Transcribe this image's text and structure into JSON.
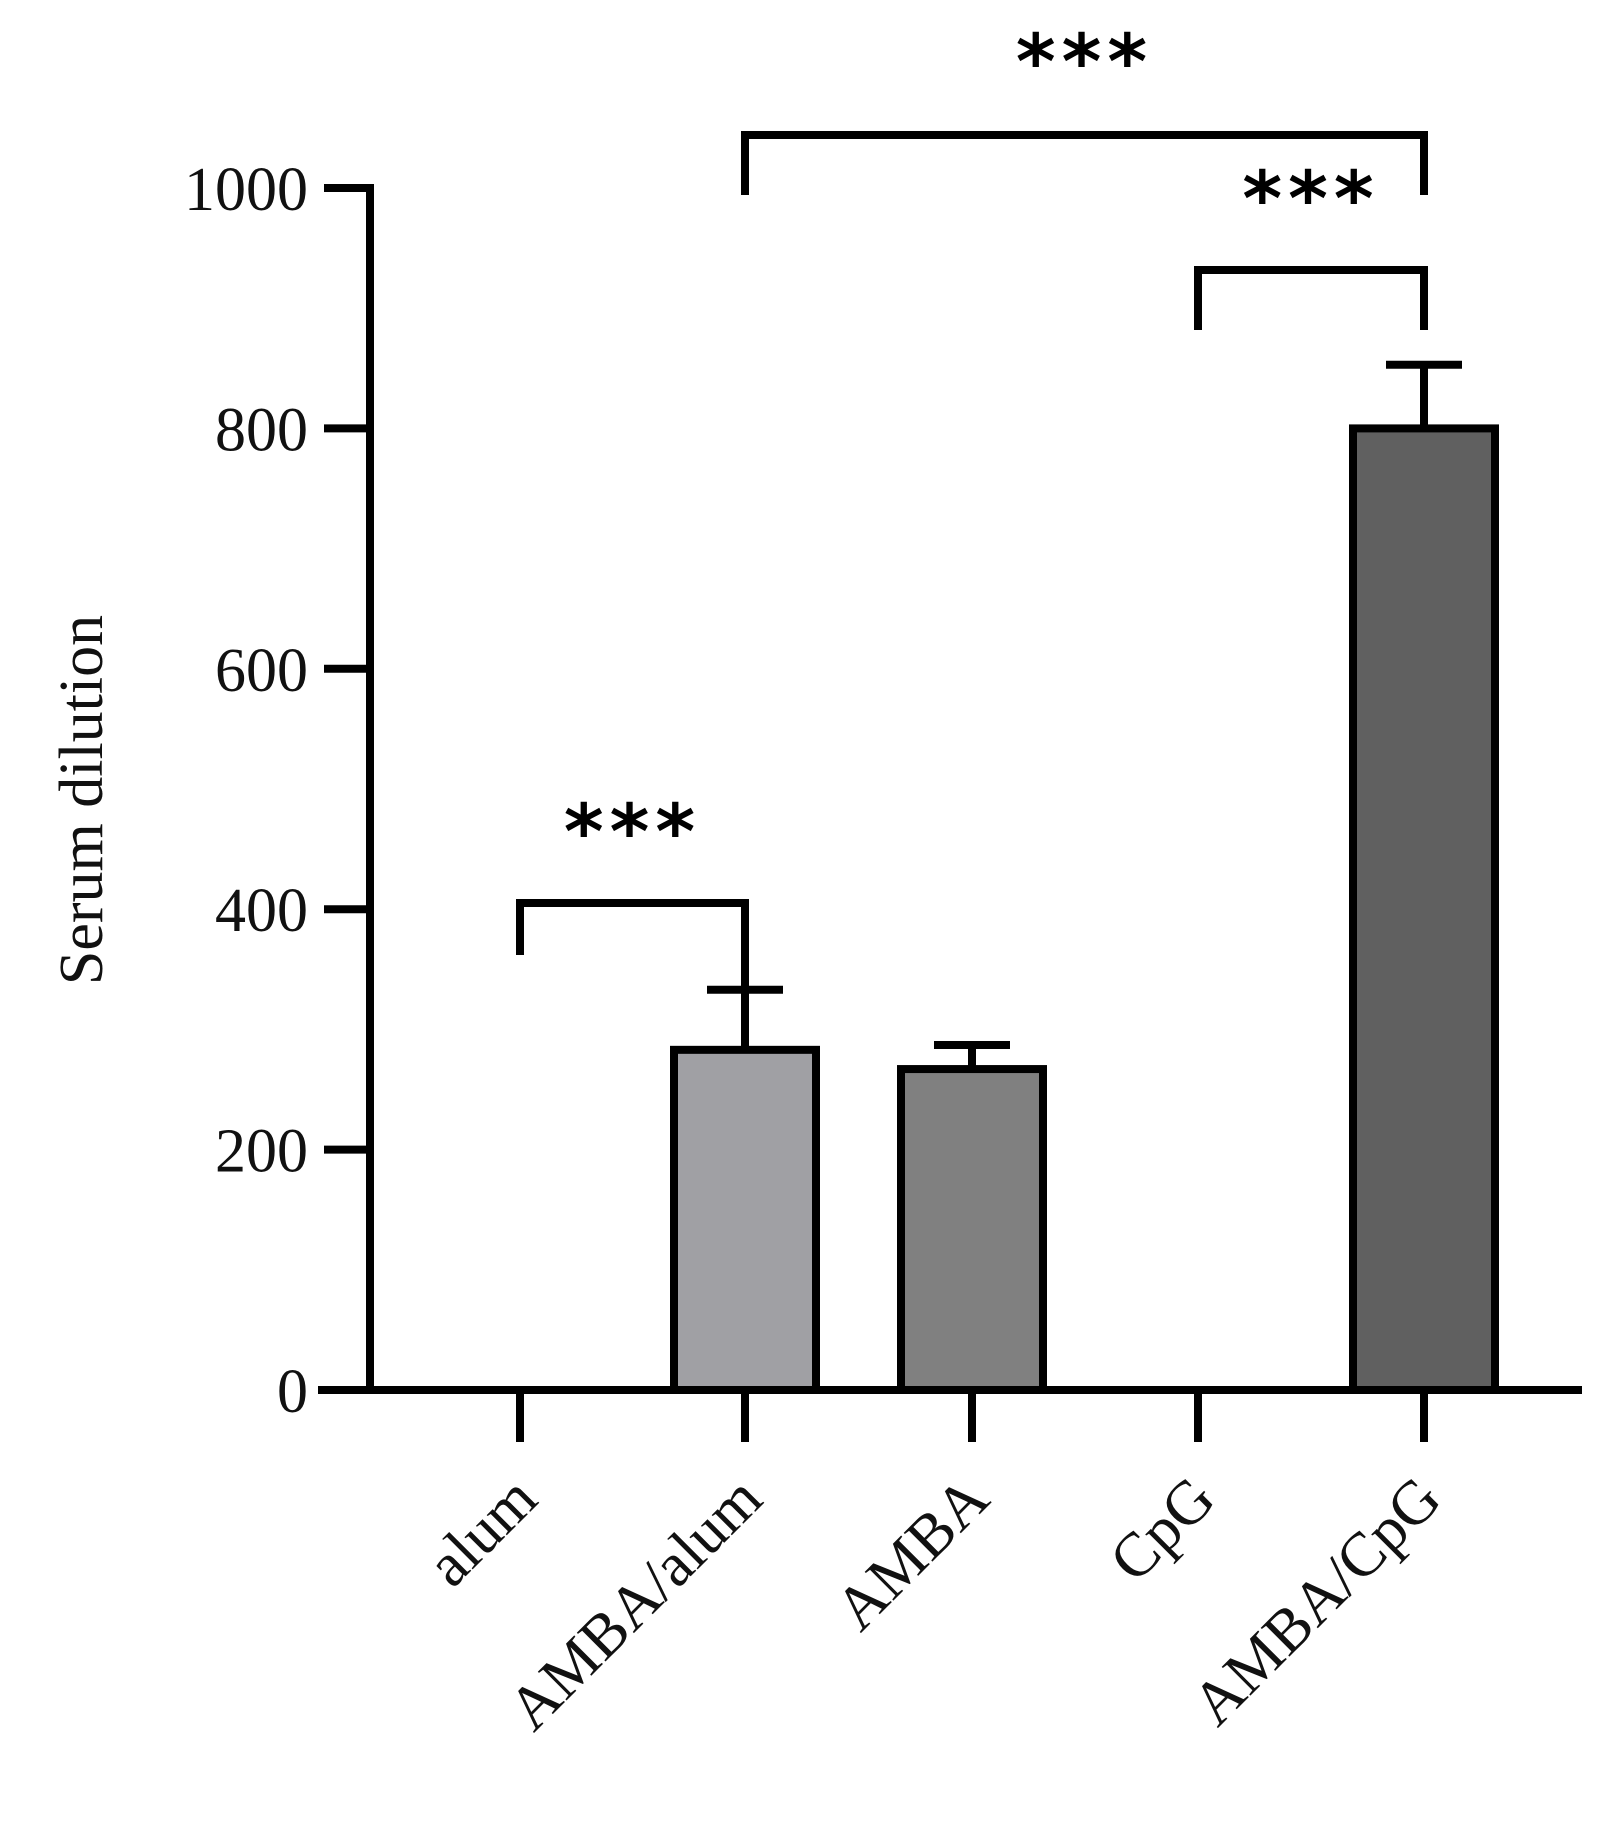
{
  "chart_data": {
    "type": "bar",
    "title": "",
    "xlabel": "",
    "ylabel": "Serum dilution",
    "ylim": [
      0,
      1000
    ],
    "yticks": [
      0,
      200,
      400,
      600,
      800,
      1000
    ],
    "grid": false,
    "legend": "none",
    "categories": [
      "alum",
      "AMBA/alum",
      "AMBA",
      "CpG",
      "AMBA/CpG"
    ],
    "values": [
      0,
      283,
      267,
      0,
      800
    ],
    "errors": [
      0,
      50,
      20,
      0,
      53
    ],
    "colors": [
      "#a0a0a4",
      "#a0a0a4",
      "#808080",
      "#606060",
      "#606060"
    ],
    "significance": [
      {
        "from": "alum",
        "to": "AMBA/alum",
        "label": "***"
      },
      {
        "from": "AMBA/alum",
        "to": "AMBA/CpG",
        "label": "***"
      },
      {
        "from": "CpG",
        "to": "AMBA/CpG",
        "label": "***"
      }
    ]
  }
}
